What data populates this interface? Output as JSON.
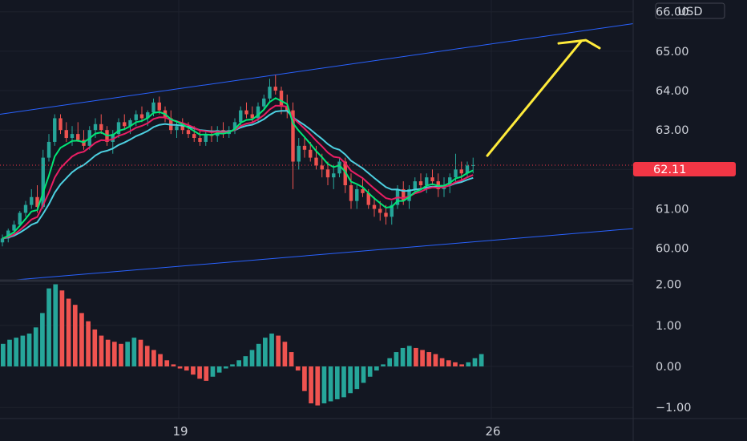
{
  "chart_data": [
    {
      "type": "candlestick",
      "currency_label": "USD",
      "last_price_label": "62.11",
      "y_ticks": [
        "66.00",
        "65.00",
        "64.00",
        "63.00",
        "61.00",
        "60.00"
      ],
      "y_tick_values": [
        66,
        65,
        64,
        63,
        61,
        60
      ],
      "ylim": [
        59.22,
        66.3
      ],
      "x_ticks": [
        "19",
        "26"
      ],
      "grid": true,
      "colors": {
        "up": "#26a69a",
        "down": "#ef5350",
        "bg": "#131722",
        "channel": "#2962ff",
        "arrow": "#ffeb3b",
        "ma_fast": "#00e676",
        "ma_mid": "#e91e63",
        "ma_slow": "#4dd0e1",
        "last_price": "#f23645"
      },
      "channel": {
        "upper": [
          63.4,
          65.7
        ],
        "lower": [
          59.2,
          60.5
        ]
      },
      "moving_averages": [
        "fast",
        "mid",
        "slow"
      ],
      "candles": [
        [
          60.15,
          60.35,
          60.05,
          60.25
        ],
        [
          60.25,
          60.5,
          60.15,
          60.45
        ],
        [
          60.45,
          60.7,
          60.35,
          60.6
        ],
        [
          60.6,
          60.95,
          60.55,
          60.9
        ],
        [
          60.9,
          61.2,
          60.8,
          61.1
        ],
        [
          61.1,
          61.5,
          61.0,
          61.3
        ],
        [
          61.3,
          61.6,
          60.9,
          61.05
        ],
        [
          61.05,
          62.5,
          61.0,
          62.3
        ],
        [
          62.3,
          62.9,
          62.2,
          62.7
        ],
        [
          62.7,
          63.4,
          62.6,
          63.3
        ],
        [
          63.3,
          63.4,
          62.9,
          63.0
        ],
        [
          63.0,
          63.2,
          62.7,
          62.8
        ],
        [
          62.8,
          63.1,
          62.6,
          62.9
        ],
        [
          62.9,
          63.2,
          62.7,
          62.75
        ],
        [
          62.75,
          63.0,
          62.5,
          62.6
        ],
        [
          62.6,
          63.1,
          62.5,
          63.0
        ],
        [
          63.0,
          63.3,
          62.8,
          63.15
        ],
        [
          63.15,
          63.4,
          62.9,
          63.0
        ],
        [
          63.0,
          63.1,
          62.6,
          62.7
        ],
        [
          62.7,
          63.0,
          62.4,
          62.9
        ],
        [
          62.9,
          63.3,
          62.8,
          63.2
        ],
        [
          63.2,
          63.4,
          63.0,
          63.1
        ],
        [
          63.1,
          63.3,
          62.9,
          63.25
        ],
        [
          63.25,
          63.5,
          63.1,
          63.4
        ],
        [
          63.4,
          63.6,
          63.2,
          63.3
        ],
        [
          63.3,
          63.5,
          63.1,
          63.45
        ],
        [
          63.45,
          63.8,
          63.35,
          63.7
        ],
        [
          63.7,
          63.85,
          63.4,
          63.5
        ],
        [
          63.5,
          63.6,
          63.2,
          63.3
        ],
        [
          63.3,
          63.5,
          62.9,
          63.0
        ],
        [
          63.0,
          63.2,
          62.8,
          63.1
        ],
        [
          63.1,
          63.3,
          62.9,
          63.0
        ],
        [
          63.0,
          63.2,
          62.8,
          62.9
        ],
        [
          62.9,
          63.1,
          62.7,
          62.8
        ],
        [
          62.8,
          63.0,
          62.6,
          62.7
        ],
        [
          62.7,
          63.0,
          62.6,
          62.9
        ],
        [
          62.9,
          63.1,
          62.7,
          62.85
        ],
        [
          62.85,
          63.1,
          62.7,
          63.0
        ],
        [
          63.0,
          63.2,
          62.8,
          62.9
        ],
        [
          62.9,
          63.1,
          62.8,
          63.0
        ],
        [
          63.0,
          63.3,
          62.9,
          63.2
        ],
        [
          63.2,
          63.6,
          63.1,
          63.5
        ],
        [
          63.5,
          63.7,
          63.3,
          63.4
        ],
        [
          63.4,
          63.6,
          63.2,
          63.3
        ],
        [
          63.3,
          63.7,
          63.2,
          63.6
        ],
        [
          63.6,
          63.9,
          63.5,
          63.8
        ],
        [
          63.8,
          64.3,
          63.7,
          64.1
        ],
        [
          64.1,
          64.4,
          63.9,
          64.0
        ],
        [
          64.0,
          64.1,
          63.4,
          63.6
        ],
        [
          63.6,
          63.9,
          63.3,
          63.5
        ],
        [
          63.5,
          63.7,
          61.5,
          62.2
        ],
        [
          62.2,
          62.8,
          62.0,
          62.6
        ],
        [
          62.6,
          62.8,
          62.3,
          62.5
        ],
        [
          62.5,
          62.7,
          62.2,
          62.3
        ],
        [
          62.3,
          62.6,
          62.0,
          62.1
        ],
        [
          62.1,
          62.4,
          61.8,
          62.0
        ],
        [
          62.0,
          62.2,
          61.6,
          61.8
        ],
        [
          61.8,
          62.1,
          61.5,
          61.9
        ],
        [
          61.9,
          62.3,
          61.8,
          62.2
        ],
        [
          62.2,
          62.3,
          61.4,
          61.6
        ],
        [
          61.6,
          61.9,
          61.0,
          61.2
        ],
        [
          61.2,
          61.6,
          61.0,
          61.5
        ],
        [
          61.5,
          61.8,
          61.3,
          61.4
        ],
        [
          61.4,
          61.5,
          61.0,
          61.1
        ],
        [
          61.1,
          61.3,
          60.8,
          61.0
        ],
        [
          61.0,
          61.2,
          60.7,
          60.9
        ],
        [
          60.9,
          61.1,
          60.6,
          60.8
        ],
        [
          60.8,
          61.2,
          60.6,
          61.1
        ],
        [
          61.1,
          61.6,
          61.0,
          61.5
        ],
        [
          61.5,
          61.7,
          61.1,
          61.2
        ],
        [
          61.2,
          61.6,
          61.0,
          61.5
        ],
        [
          61.5,
          61.8,
          61.4,
          61.7
        ],
        [
          61.7,
          61.9,
          61.5,
          61.6
        ],
        [
          61.6,
          61.9,
          61.4,
          61.8
        ],
        [
          61.8,
          62.0,
          61.6,
          61.7
        ],
        [
          61.7,
          61.9,
          61.3,
          61.5
        ],
        [
          61.5,
          61.8,
          61.3,
          61.6
        ],
        [
          61.6,
          61.9,
          61.4,
          61.8
        ],
        [
          61.8,
          62.4,
          61.7,
          62.0
        ],
        [
          62.0,
          62.2,
          61.7,
          61.9
        ],
        [
          61.9,
          62.2,
          61.8,
          62.1
        ],
        [
          62.1,
          62.3,
          61.9,
          62.11
        ]
      ],
      "oscillator": {
        "y_ticks": [
          "2.00",
          "1.00",
          "0.00",
          "−1.00"
        ],
        "y_tick_values": [
          2,
          1,
          0,
          -1
        ],
        "ylim": [
          -1.25,
          2.05
        ],
        "values": [
          0.55,
          0.65,
          0.7,
          0.75,
          0.8,
          0.95,
          1.3,
          1.9,
          2.0,
          1.85,
          1.65,
          1.5,
          1.3,
          1.1,
          0.9,
          0.75,
          0.65,
          0.6,
          0.55,
          0.6,
          0.7,
          0.65,
          0.5,
          0.4,
          0.3,
          0.15,
          0.05,
          -0.05,
          -0.1,
          -0.2,
          -0.3,
          -0.35,
          -0.25,
          -0.15,
          -0.05,
          0.05,
          0.15,
          0.25,
          0.4,
          0.55,
          0.7,
          0.8,
          0.75,
          0.6,
          0.35,
          -0.1,
          -0.6,
          -0.9,
          -0.95,
          -0.9,
          -0.85,
          -0.8,
          -0.75,
          -0.65,
          -0.55,
          -0.4,
          -0.25,
          -0.1,
          0.05,
          0.2,
          0.35,
          0.45,
          0.5,
          0.45,
          0.4,
          0.35,
          0.3,
          0.2,
          0.15,
          0.1,
          0.05,
          0.1,
          0.2,
          0.3
        ]
      }
    }
  ]
}
